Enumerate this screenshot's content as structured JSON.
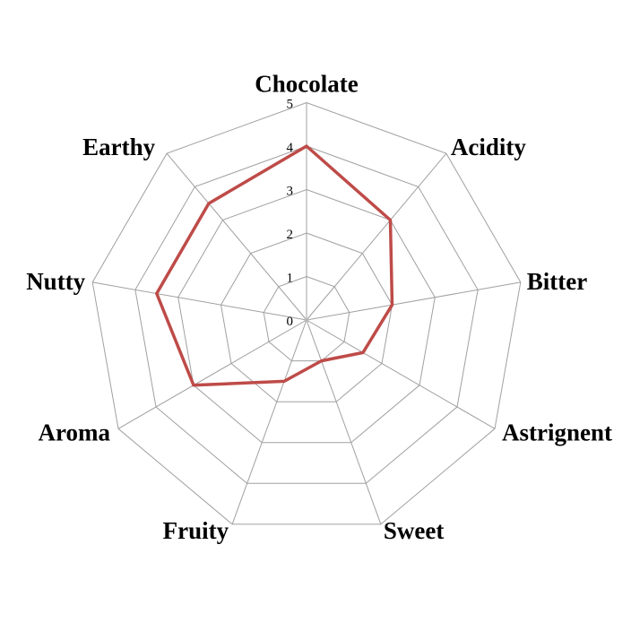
{
  "chart_data": {
    "type": "radar",
    "categories": [
      "Chocolate",
      "Acidity",
      "Bitter",
      "Astrignent",
      "Sweet",
      "Fruity",
      "Aroma",
      "Nutty",
      "Earthy"
    ],
    "series": [
      {
        "values": [
          4,
          3,
          2,
          1.5,
          1,
          1.5,
          3,
          3.5,
          3.5
        ]
      }
    ],
    "ticks": [
      0,
      1,
      2,
      3,
      4,
      5
    ],
    "rmax": 5,
    "axis_range": [
      0,
      5
    ],
    "grid": true,
    "legend": false,
    "title": "",
    "colors": {
      "line": "#BE4B48",
      "grid": "#A0A0A0",
      "text": "#000000",
      "background": "#FFFFFF"
    }
  }
}
